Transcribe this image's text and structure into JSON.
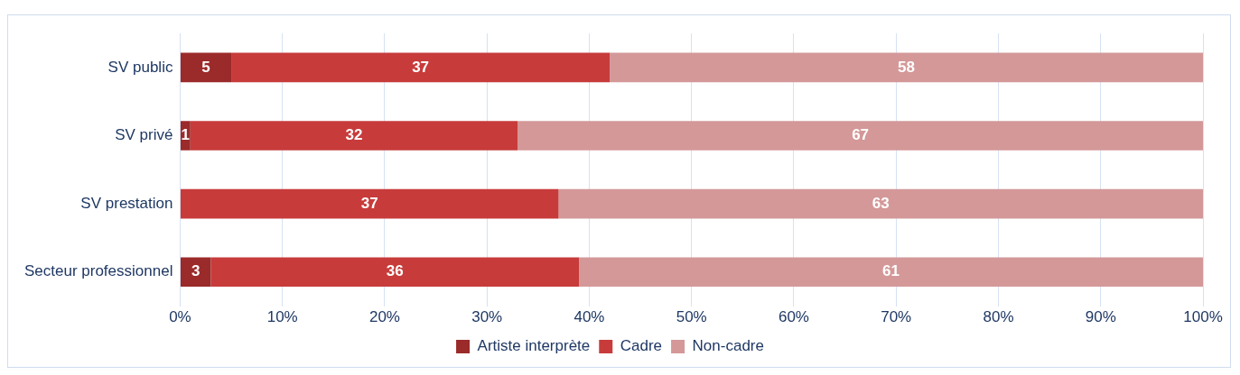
{
  "chart_data": {
    "type": "bar",
    "orientation": "horizontal",
    "stacked": true,
    "categories": [
      "SV public",
      "SV privé",
      "SV prestation",
      "Secteur professionnel"
    ],
    "series": [
      {
        "name": "Artiste interprète",
        "color": "#9b2a2a",
        "values": [
          5,
          1,
          null,
          3
        ]
      },
      {
        "name": "Cadre",
        "color": "#c83b3b",
        "values": [
          37,
          32,
          37,
          36
        ]
      },
      {
        "name": "Non-cadre",
        "color": "#d49898",
        "values": [
          58,
          67,
          63,
          61
        ]
      }
    ],
    "xlim": [
      0,
      100
    ],
    "xticks": [
      {
        "value": 0,
        "label": "0%"
      },
      {
        "value": 10,
        "label": "10%"
      },
      {
        "value": 20,
        "label": "20%"
      },
      {
        "value": 30,
        "label": "30%"
      },
      {
        "value": 40,
        "label": "40%"
      },
      {
        "value": 50,
        "label": "50%"
      },
      {
        "value": 60,
        "label": "60%"
      },
      {
        "value": 70,
        "label": "70%"
      },
      {
        "value": 80,
        "label": "80%"
      },
      {
        "value": 90,
        "label": "90%"
      },
      {
        "value": 100,
        "label": "100%"
      }
    ],
    "grid": "x",
    "legend": "bottom",
    "data_labels": true
  }
}
